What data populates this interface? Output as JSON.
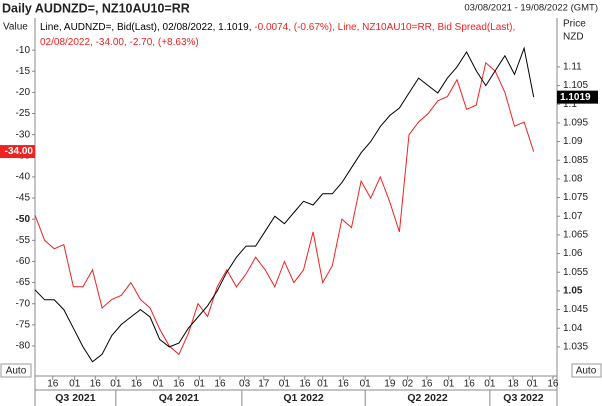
{
  "chart_data": {
    "type": "line",
    "title": "Daily AUDNZD=, NZ10AU10=RR",
    "date_range": "03/08/2021 - 19/08/2022 (GMT)",
    "header_lines": [
      [
        {
          "text": "Line, AUDNZD=, Bid(Last), 02/08/2022, 1.1019,",
          "color": "#000000"
        },
        {
          "text": " -0.0074, (-0.67%), Line, NZ10AU10=RR, Bid Spread(Last),",
          "color": "#ee2222"
        }
      ],
      [
        {
          "text": "02/08/2022, -34.00, -2.70, (+8.63%)",
          "color": "#ee2222"
        }
      ]
    ],
    "ylabel": "Value",
    "y2label": [
      "Price",
      "NZD"
    ],
    "autoscale_labels": [
      "Auto",
      "Auto"
    ],
    "xlim": [
      "2021-08-03",
      "2022-08-19"
    ],
    "ylim": [
      -87.1,
      -2.4
    ],
    "yticks": [
      -10,
      -15,
      -20,
      -25,
      -30,
      -35,
      -40,
      -45,
      -50,
      -55,
      -60,
      -65,
      -70,
      -75,
      -80
    ],
    "y_bold_tick": -50,
    "y2lim": [
      1.0272,
      1.1231
    ],
    "y2ticks": [
      1.11,
      1.105,
      1.1,
      1.095,
      1.09,
      1.085,
      1.08,
      1.075,
      1.07,
      1.065,
      1.06,
      1.055,
      1.05,
      1.045,
      1.04,
      1.035
    ],
    "y2_bold_tick": 1.05,
    "grid": false,
    "xticks": [
      {
        "value": "2021-08-16",
        "label": "16"
      },
      {
        "value": "2021-09-01",
        "label": "01"
      },
      {
        "value": "2021-09-16",
        "label": "16"
      },
      {
        "value": "2021-10-01",
        "label": "01"
      },
      {
        "value": "2021-10-16",
        "label": "16"
      },
      {
        "value": "2021-11-01",
        "label": "01"
      },
      {
        "value": "2021-11-16",
        "label": "16"
      },
      {
        "value": "2021-12-01",
        "label": "01"
      },
      {
        "value": "2021-12-16",
        "label": "16"
      },
      {
        "value": "2022-01-03",
        "label": "03"
      },
      {
        "value": "2022-01-17",
        "label": "17"
      },
      {
        "value": "2022-02-01",
        "label": "01"
      },
      {
        "value": "2022-02-16",
        "label": "16"
      },
      {
        "value": "2022-03-01",
        "label": "01"
      },
      {
        "value": "2022-03-16",
        "label": "16"
      },
      {
        "value": "2022-04-01",
        "label": "01"
      },
      {
        "value": "2022-04-19",
        "label": "19"
      },
      {
        "value": "2022-05-02",
        "label": "02"
      },
      {
        "value": "2022-05-16",
        "label": "16"
      },
      {
        "value": "2022-06-01",
        "label": "01"
      },
      {
        "value": "2022-06-16",
        "label": "16"
      },
      {
        "value": "2022-07-01",
        "label": "01"
      },
      {
        "value": "2022-07-18",
        "label": "18"
      },
      {
        "value": "2022-08-01",
        "label": "01"
      },
      {
        "value": "2022-08-16",
        "label": "16"
      }
    ],
    "quarters": [
      {
        "value": "2021-07-01",
        "label": "Q3 2021"
      },
      {
        "value": "2021-10-01",
        "label": "Q4 2021"
      },
      {
        "value": "2022-01-01",
        "label": "Q1 2022"
      },
      {
        "value": "2022-04-01",
        "label": "Q2 2022"
      },
      {
        "value": "2022-07-01",
        "label": "Q3 2022"
      }
    ],
    "x": [
      "2021-08-03",
      "2021-08-10",
      "2021-08-17",
      "2021-08-24",
      "2021-08-31",
      "2021-09-07",
      "2021-09-14",
      "2021-09-21",
      "2021-09-28",
      "2021-10-05",
      "2021-10-12",
      "2021-10-19",
      "2021-10-26",
      "2021-11-02",
      "2021-11-09",
      "2021-11-16",
      "2021-11-23",
      "2021-11-30",
      "2021-12-07",
      "2021-12-14",
      "2021-12-21",
      "2021-12-28",
      "2022-01-04",
      "2022-01-11",
      "2022-01-18",
      "2022-01-25",
      "2022-02-01",
      "2022-02-08",
      "2022-02-15",
      "2022-02-22",
      "2022-03-01",
      "2022-03-08",
      "2022-03-15",
      "2022-03-22",
      "2022-03-29",
      "2022-04-05",
      "2022-04-12",
      "2022-04-19",
      "2022-04-26",
      "2022-05-03",
      "2022-05-10",
      "2022-05-17",
      "2022-05-24",
      "2022-05-31",
      "2022-06-07",
      "2022-06-14",
      "2022-06-21",
      "2022-06-28",
      "2022-07-05",
      "2022-07-12",
      "2022-07-19",
      "2022-07-26",
      "2022-08-02"
    ],
    "series": [
      {
        "name": "AUDNZD=",
        "color": "#000000",
        "axis": "y2",
        "last_label": "1.1019",
        "values": [
          1.0503,
          1.0476,
          1.0476,
          1.045,
          1.04,
          1.035,
          1.031,
          1.033,
          1.038,
          1.041,
          1.043,
          1.045,
          1.043,
          1.037,
          1.035,
          1.036,
          1.04,
          1.043,
          1.046,
          1.05,
          1.055,
          1.059,
          1.062,
          1.062,
          1.066,
          1.07,
          1.068,
          1.071,
          1.074,
          1.073,
          1.076,
          1.076,
          1.079,
          1.083,
          1.087,
          1.09,
          1.094,
          1.097,
          1.099,
          1.103,
          1.107,
          1.105,
          1.103,
          1.107,
          1.11,
          1.114,
          1.109,
          1.105,
          1.109,
          1.113,
          1.108,
          1.115,
          1.1019
        ]
      },
      {
        "name": "NZ10AU10=RR",
        "color": "#ee2222",
        "axis": "y",
        "last_label": "-34.00",
        "values": [
          -49,
          -55,
          -57,
          -56,
          -66,
          -66,
          -62,
          -71,
          -69,
          -68,
          -65,
          -69,
          -71,
          -76,
          -80,
          -82,
          -77,
          -70,
          -73,
          -66,
          -62,
          -66,
          -63,
          -59,
          -62,
          -66,
          -60,
          -65,
          -62,
          -53,
          -65,
          -61,
          -50,
          -52,
          -41,
          -45,
          -40,
          -46,
          -53,
          -30,
          -27,
          -25,
          -22,
          -21,
          -17,
          -24,
          -23,
          -13,
          -15,
          -20,
          -28,
          -27,
          -34
        ]
      }
    ]
  }
}
